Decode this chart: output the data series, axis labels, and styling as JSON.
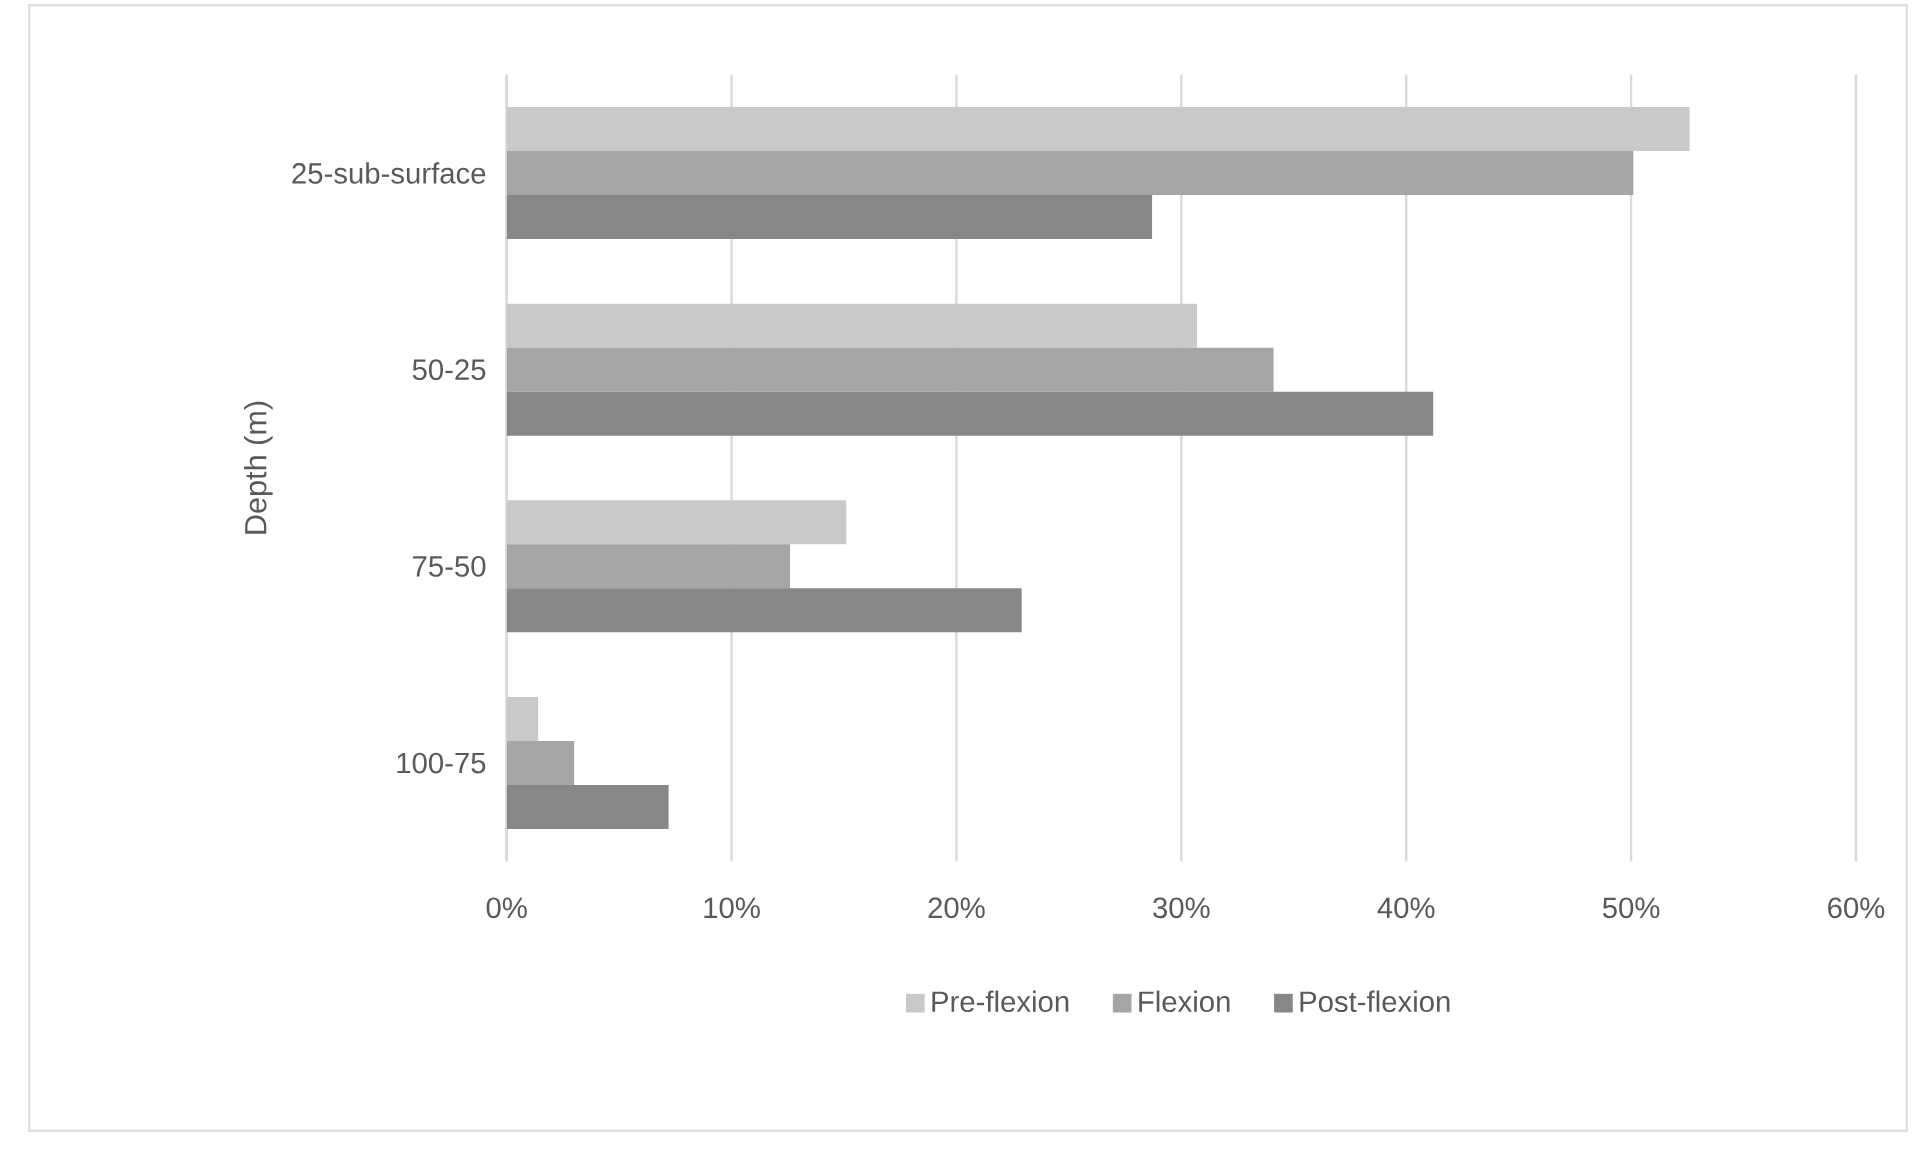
{
  "chart_data": {
    "type": "bar",
    "orientation": "horizontal",
    "ylabel": "Depth (m)",
    "categories": [
      "25-sub-surface",
      "50-25",
      "75-50",
      "100-75"
    ],
    "series": [
      {
        "name": "Pre-flexion",
        "color": "#c9c9c9",
        "values": [
          52.6,
          30.7,
          15.1,
          1.4
        ]
      },
      {
        "name": "Flexion",
        "color": "#a5a5a5",
        "values": [
          50.1,
          34.1,
          12.6,
          3.0
        ]
      },
      {
        "name": "Post-flexion",
        "color": "#878787",
        "values": [
          28.7,
          41.2,
          22.9,
          7.2
        ]
      }
    ],
    "xlim": [
      0,
      60
    ],
    "xticks": [
      {
        "value": 0,
        "label": "0%"
      },
      {
        "value": 10,
        "label": "10%"
      },
      {
        "value": 20,
        "label": "20%"
      },
      {
        "value": 30,
        "label": "30%"
      },
      {
        "value": 40,
        "label": "40%"
      },
      {
        "value": 50,
        "label": "50%"
      },
      {
        "value": 60,
        "label": "60%"
      }
    ],
    "grid": "x",
    "legend": "bottom"
  }
}
